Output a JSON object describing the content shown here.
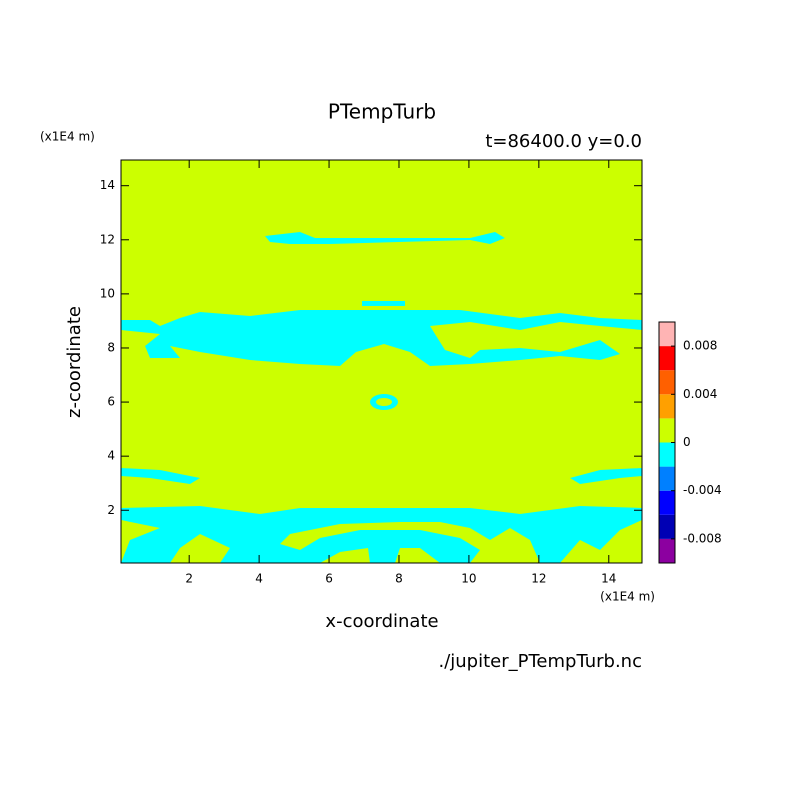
{
  "chart_data": {
    "type": "contour",
    "title": "PTempTurb",
    "subtitle": "t=86400.0 y=0.0",
    "x_label": "x-coordinate",
    "y_label": "z-coordinate",
    "x_unit": "(x1E4 m)",
    "y_unit": "(x1E4 m)",
    "file_label": "./jupiter_PTempTurb.nc",
    "xlim": [
      0.05,
      14.95
    ],
    "ylim": [
      0.05,
      14.95
    ],
    "xticks": [
      2,
      4,
      6,
      8,
      10,
      12,
      14
    ],
    "yticks": [
      2,
      4,
      6,
      8,
      10,
      12,
      14
    ],
    "colorbar": {
      "levels": [
        -0.01,
        -0.008,
        -0.006,
        -0.004,
        -0.002,
        0,
        0.002,
        0.004,
        0.006,
        0.008,
        0.01
      ],
      "colors": [
        "#8c00a0",
        "#0000b4",
        "#0000ff",
        "#0080ff",
        "#00ffff",
        "#ccff00",
        "#ffa000",
        "#ff6000",
        "#ff0000",
        "#ffb4b4"
      ],
      "ticks": [
        0.008,
        0.004,
        0,
        -0.004,
        -0.008
      ]
    }
  }
}
